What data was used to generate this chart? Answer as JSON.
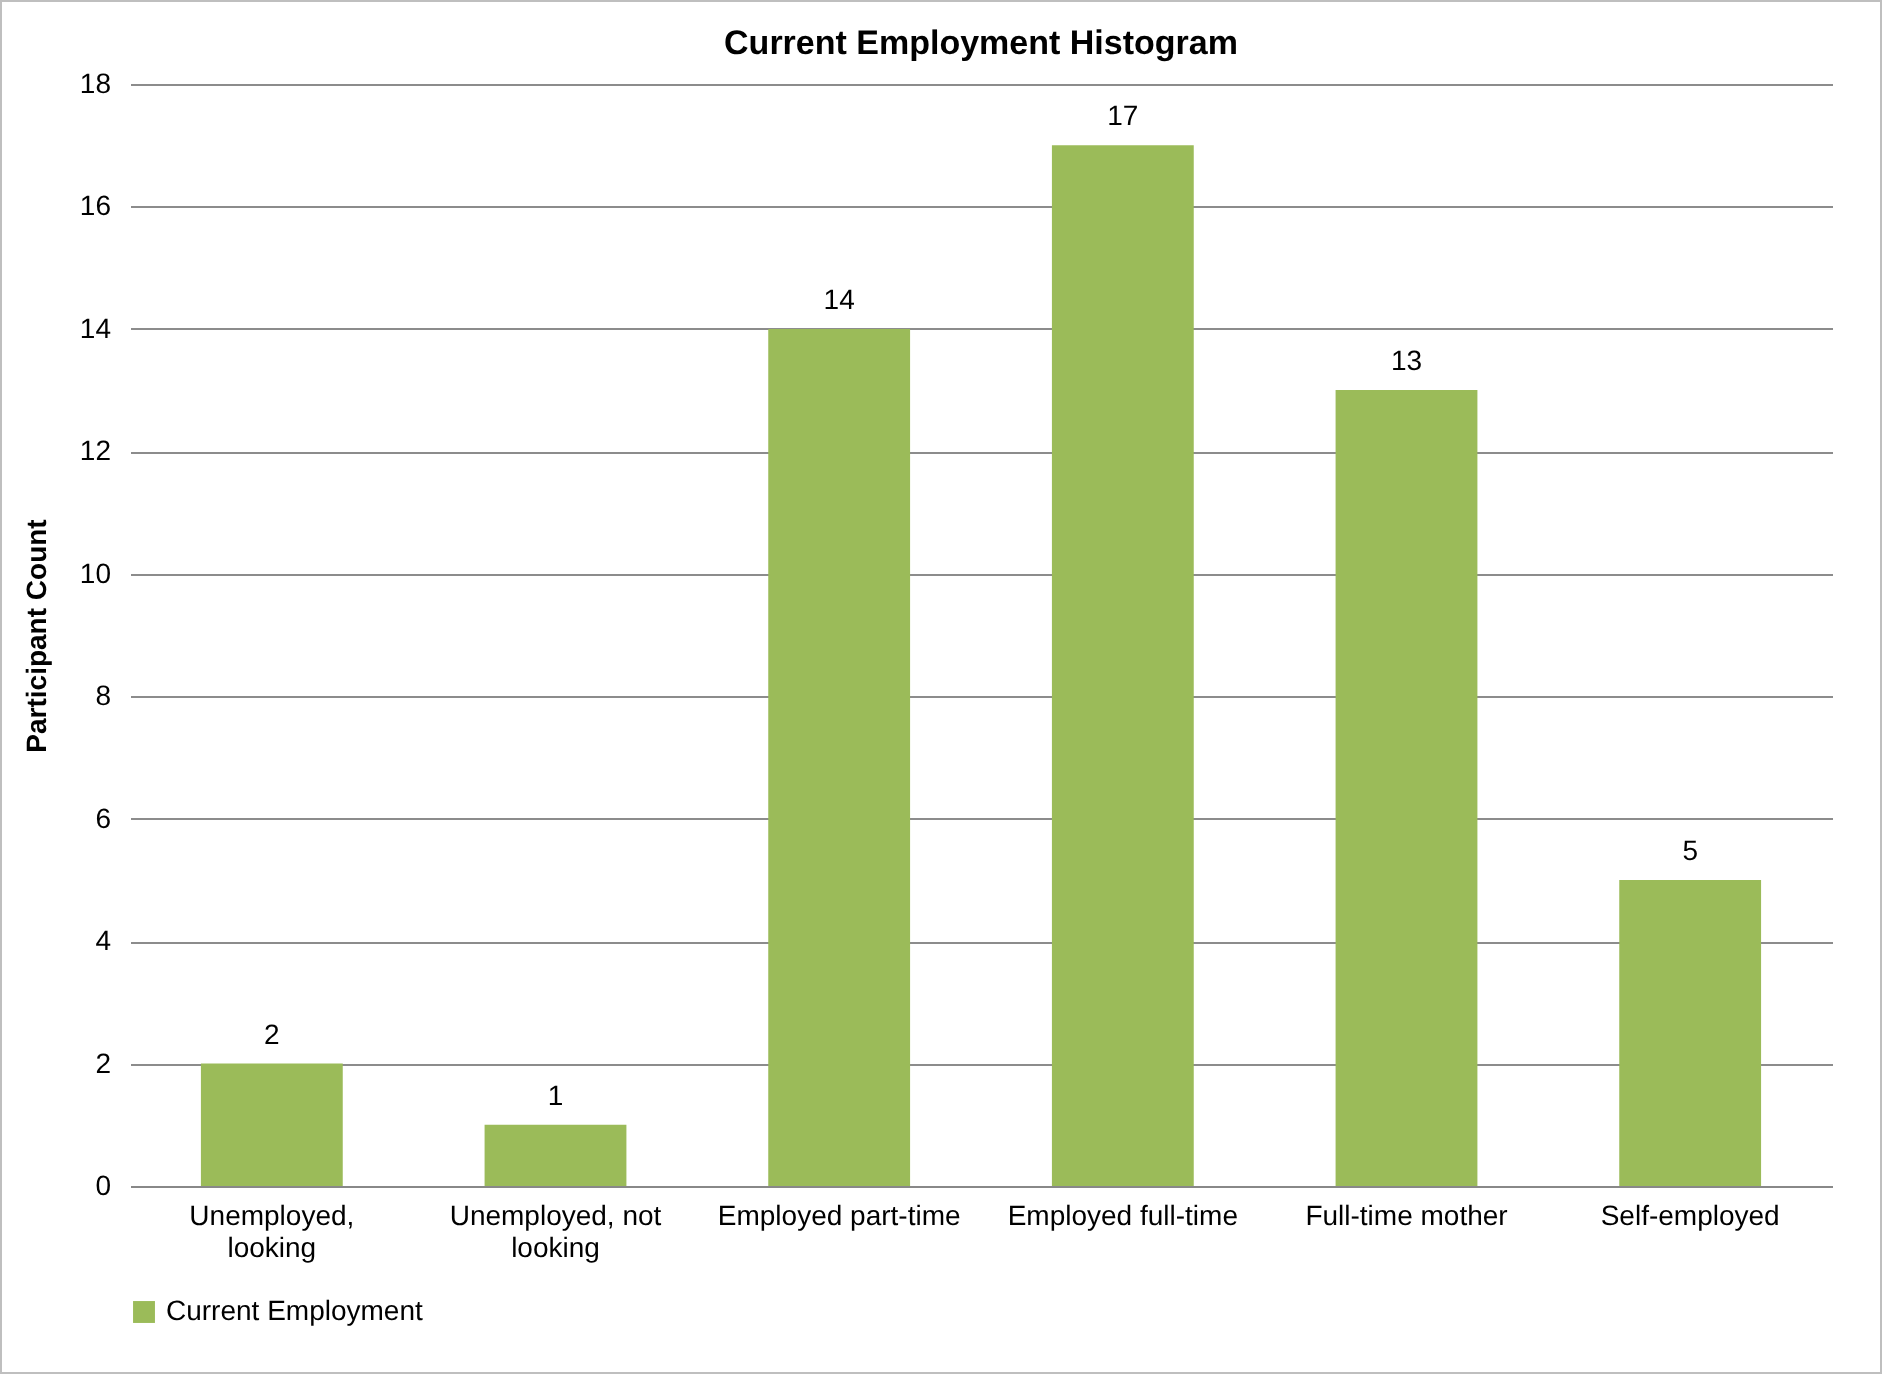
{
  "chart_data": {
    "type": "bar",
    "title": "Current Employment Histogram",
    "ylabel": "Participant Count",
    "categories": [
      "Unemployed, looking",
      "Unemployed, not looking",
      "Employed part-time",
      "Employed full-time",
      "Full-time mother",
      "Self-employed"
    ],
    "series": [
      {
        "name": "Current Employment",
        "color": "#9bbb59",
        "values": [
          2,
          1,
          14,
          17,
          13,
          5
        ]
      }
    ],
    "ylim": [
      0,
      18
    ],
    "yticks": [
      0,
      2,
      4,
      6,
      8,
      10,
      12,
      14,
      16,
      18
    ],
    "grid": "y",
    "legend": "bottom",
    "data_labels": true
  }
}
